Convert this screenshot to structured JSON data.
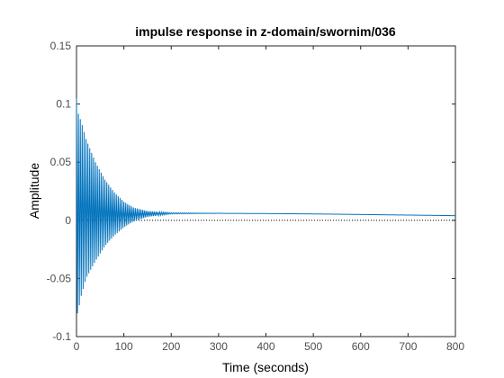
{
  "chart_data": {
    "type": "line",
    "title": "impulse response in z-domain/swornim/036",
    "xlabel": "Time (seconds)",
    "ylabel": "Amplitude",
    "xlim": [
      0,
      800
    ],
    "ylim": [
      -0.1,
      0.15
    ],
    "xticks": [
      "0",
      "100",
      "200",
      "300",
      "400",
      "500",
      "600",
      "700",
      "800"
    ],
    "yticks": [
      "-0.1",
      "-0.05",
      "0",
      "0.05",
      "0.1",
      "0.15"
    ],
    "grid": false,
    "reference_line": {
      "y": 0,
      "style": "dotted"
    },
    "series": [
      {
        "color": "#0072bd",
        "description_points": {
          "x": [
            0,
            2,
            5,
            10,
            20,
            40,
            60,
            80,
            100,
            120,
            150,
            200,
            300,
            400,
            500,
            600,
            700,
            800
          ],
          "envelope_upper": [
            0.105,
            0.095,
            0.09,
            0.085,
            0.07,
            0.05,
            0.035,
            0.024,
            0.016,
            0.011,
            0.008,
            0.0065,
            0.006,
            0.0058,
            0.0055,
            0.005,
            0.0045,
            0.004
          ],
          "envelope_lower": [
            -0.085,
            -0.08,
            -0.075,
            -0.065,
            -0.05,
            -0.035,
            -0.022,
            -0.013,
            -0.006,
            -0.001,
            0.003,
            0.0055,
            0.006,
            0.0058,
            0.0055,
            0.005,
            0.0045,
            0.004
          ]
        },
        "oscillation_period": 4
      }
    ]
  }
}
